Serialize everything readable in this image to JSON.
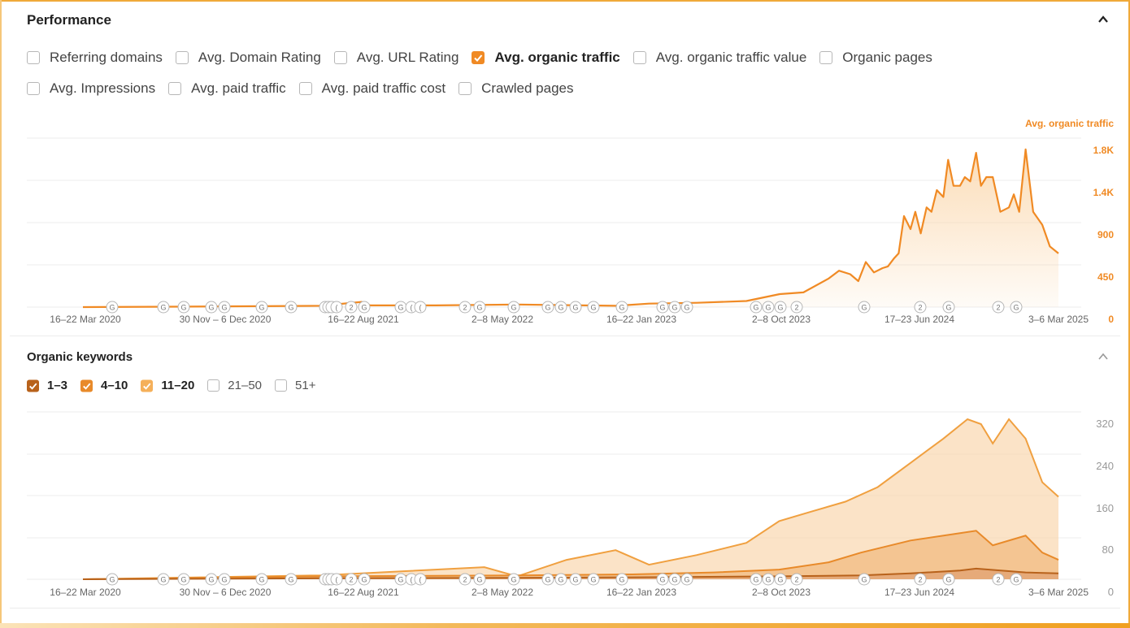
{
  "performance": {
    "title": "Performance",
    "metrics": [
      {
        "label": "Referring domains",
        "checked": false
      },
      {
        "label": "Avg. Domain Rating",
        "checked": false
      },
      {
        "label": "Avg. URL Rating",
        "checked": false
      },
      {
        "label": "Avg. organic traffic",
        "checked": true
      },
      {
        "label": "Avg. organic traffic value",
        "checked": false
      },
      {
        "label": "Organic pages",
        "checked": false
      },
      {
        "label": "Avg. Impressions",
        "checked": false
      },
      {
        "label": "Avg. paid traffic",
        "checked": false
      },
      {
        "label": "Avg. paid traffic cost",
        "checked": false
      },
      {
        "label": "Crawled pages",
        "checked": false
      }
    ],
    "series_label": "Avg. organic traffic",
    "y_ticks": [
      "1.8K",
      "1.4K",
      "900",
      "450",
      "0"
    ],
    "x_ticks": [
      "16–22 Mar 2020",
      "30 Nov – 6 Dec 2020",
      "16–22 Aug 2021",
      "2–8 May 2022",
      "16–22 Jan 2023",
      "2–8 Oct 2023",
      "17–23 Jun 2024",
      "3–6 Mar 2025"
    ]
  },
  "organic_keywords": {
    "title": "Organic keywords",
    "positions": [
      {
        "label": "1–3",
        "checked": true,
        "color": "#b8621b"
      },
      {
        "label": "4–10",
        "checked": true,
        "color": "#e88a2a"
      },
      {
        "label": "11–20",
        "checked": true,
        "color": "#f5b05a"
      },
      {
        "label": "21–50",
        "checked": false,
        "color": "#cccccc"
      },
      {
        "label": "51+",
        "checked": false,
        "color": "#cccccc"
      }
    ],
    "y_ticks": [
      "320",
      "240",
      "160",
      "80",
      "0"
    ],
    "x_ticks": [
      "16–22 Mar 2020",
      "30 Nov – 6 Dec 2020",
      "16–22 Aug 2021",
      "2–8 May 2022",
      "16–22 Jan 2023",
      "2–8 Oct 2023",
      "17–23 Jun 2024",
      "3–6 Mar 2025"
    ]
  },
  "markers": [
    "G",
    "G",
    "G",
    "G",
    "G",
    "G",
    "G",
    "G",
    "(",
    "(",
    "(",
    "2",
    "G",
    "G",
    "(",
    "(",
    "2",
    "G",
    "G",
    "G",
    "G",
    "G",
    "G",
    "G",
    "G",
    "G",
    "G",
    "G",
    "G",
    "G",
    "2",
    "G",
    "2",
    "G",
    "2",
    "G",
    "G"
  ],
  "colors": {
    "accent": "#f08a24",
    "accent_fill": "#fbd9b0"
  },
  "chart_data": [
    {
      "type": "area",
      "title": "",
      "series": [
        {
          "name": "Avg. organic traffic",
          "x": [
            "2020-03-16",
            "2020-09-01",
            "2021-06-01",
            "2021-08-16",
            "2021-09-01",
            "2022-01-01",
            "2022-06-01",
            "2022-12-01",
            "2023-02-01",
            "2023-05-01",
            "2023-08-01",
            "2023-10-02",
            "2023-11-15",
            "2024-01-01",
            "2024-01-20",
            "2024-02-10",
            "2024-02-25",
            "2024-03-10",
            "2024-03-25",
            "2024-04-10",
            "2024-04-20",
            "2024-05-01",
            "2024-05-10",
            "2024-05-20",
            "2024-06-01",
            "2024-06-10",
            "2024-06-20",
            "2024-07-01",
            "2024-07-10",
            "2024-07-20",
            "2024-08-01",
            "2024-08-10",
            "2024-08-20",
            "2024-09-01",
            "2024-09-10",
            "2024-09-20",
            "2024-10-01",
            "2024-10-10",
            "2024-10-20",
            "2024-11-01",
            "2024-11-15",
            "2024-12-01",
            "2024-12-10",
            "2024-12-20",
            "2025-01-01",
            "2025-01-15",
            "2025-02-01",
            "2025-02-15",
            "2025-03-03"
          ],
          "values": [
            0,
            5,
            15,
            60,
            20,
            20,
            30,
            15,
            40,
            50,
            70,
            150,
            170,
            330,
            420,
            380,
            300,
            520,
            400,
            450,
            470,
            560,
            620,
            1050,
            900,
            1100,
            850,
            1150,
            1100,
            1350,
            1270,
            1700,
            1400,
            1400,
            1500,
            1450,
            1780,
            1400,
            1500,
            1500,
            1100,
            1150,
            1300,
            1100,
            1820,
            1100,
            950,
            700,
            620
          ]
        }
      ],
      "ylim": [
        0,
        1800
      ]
    },
    {
      "type": "area",
      "title": "",
      "series": [
        {
          "name": "1–3",
          "x": [
            "2020-03-16",
            "2021-06-01",
            "2022-06-01",
            "2023-01-01",
            "2023-10-01",
            "2024-03-01",
            "2024-06-01",
            "2024-09-01",
            "2024-10-01",
            "2025-01-01",
            "2025-03-03"
          ],
          "values": [
            0,
            2,
            3,
            4,
            6,
            8,
            12,
            18,
            22,
            14,
            12
          ]
        },
        {
          "name": "4–10",
          "x": [
            "2020-03-16",
            "2021-06-01",
            "2022-06-01",
            "2023-01-01",
            "2023-06-01",
            "2023-10-01",
            "2024-01-01",
            "2024-03-01",
            "2024-06-01",
            "2024-09-01",
            "2024-10-01",
            "2024-11-01",
            "2025-01-01",
            "2025-02-01",
            "2025-03-03"
          ],
          "values": [
            0,
            6,
            8,
            10,
            14,
            20,
            35,
            55,
            80,
            95,
            100,
            70,
            90,
            55,
            40
          ]
        },
        {
          "name": "11–20",
          "x": [
            "2020-03-16",
            "2021-06-01",
            "2022-04-01",
            "2022-06-01",
            "2022-09-01",
            "2022-12-01",
            "2023-02-01",
            "2023-05-01",
            "2023-08-01",
            "2023-10-01",
            "2023-12-01",
            "2024-02-01",
            "2024-04-01",
            "2024-06-01",
            "2024-08-01",
            "2024-09-15",
            "2024-10-10",
            "2024-11-01",
            "2024-12-01",
            "2025-01-01",
            "2025-02-01",
            "2025-03-03"
          ],
          "values": [
            0,
            8,
            25,
            6,
            40,
            60,
            30,
            50,
            75,
            120,
            140,
            160,
            190,
            240,
            290,
            330,
            320,
            280,
            330,
            290,
            200,
            170
          ]
        }
      ],
      "ylim": [
        0,
        320
      ]
    }
  ]
}
